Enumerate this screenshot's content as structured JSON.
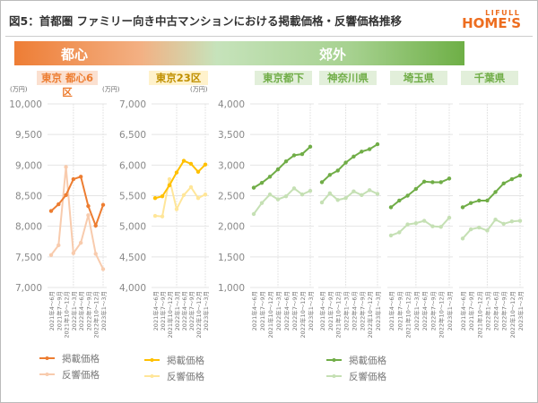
{
  "header": {
    "title": "図5：首都圏 ファミリー向き中古マンションにおける掲載価格・反響価格推移",
    "logo_top": "LIFULL",
    "logo_bottom": "HOME'S"
  },
  "band": {
    "left": "都心",
    "right": "郊外"
  },
  "unit": "(万円)",
  "colors": {
    "orange": "#ed7d31",
    "orange_light": "#f8cbad",
    "yellow": "#ffc000",
    "yellow_light": "#ffe699",
    "green": "#70ad47",
    "green_light": "#c5e0b4",
    "brand": "#ed6d1f"
  },
  "chart_data": {
    "type": "line",
    "categories": [
      "2021年4～6月",
      "2021年7～9月",
      "2021年10～12月",
      "2022年1～3月",
      "2022年4～6月",
      "2022年7～9月",
      "2022年10～12月",
      "2023年1～3月"
    ],
    "legend": [
      "掲載価格",
      "反響価格"
    ],
    "panels": [
      {
        "name": "東京 都心6区",
        "ylim": [
          7000,
          10000
        ],
        "yticks": [
          "7,000",
          "7,500",
          "8,000",
          "8,500",
          "9,000",
          "9,500",
          "10,000"
        ],
        "series": [
          {
            "name": "掲載価格",
            "values": [
              8250,
              8360,
              8510,
              8770,
              8810,
              8330,
              8010,
              8350
            ]
          },
          {
            "name": "反響価格",
            "values": [
              7530,
              7690,
              8970,
              7560,
              7730,
              8180,
              7550,
              7300
            ]
          }
        ]
      },
      {
        "name": "東京23区",
        "ylim": [
          4000,
          7000
        ],
        "yticks": [
          "4,000",
          "4,500",
          "5,000",
          "5,500",
          "6,000",
          "6,500",
          "7,000"
        ],
        "series": [
          {
            "name": "掲載価格",
            "values": [
              5460,
              5490,
              5670,
              5880,
              6070,
              6020,
              5890,
              6010
            ]
          },
          {
            "name": "反響価格",
            "values": [
              5170,
              5160,
              5770,
              5280,
              5510,
              5640,
              5460,
              5520
            ]
          }
        ]
      },
      {
        "name": "東京都下",
        "ylim": [
          1000,
          4000
        ],
        "yticks": [
          "1,000",
          "1,500",
          "2,000",
          "2,500",
          "3,000",
          "3,500",
          "4,000"
        ],
        "series": [
          {
            "name": "掲載価格",
            "values": [
              2630,
              2710,
              2810,
              2930,
              3060,
              3160,
              3180,
              3300
            ]
          },
          {
            "name": "反響価格",
            "values": [
              2200,
              2380,
              2520,
              2440,
              2490,
              2620,
              2520,
              2580
            ]
          }
        ]
      },
      {
        "name": "神奈川県",
        "ylim": [
          1000,
          4000
        ],
        "series": [
          {
            "name": "掲載価格",
            "values": [
              2720,
              2840,
              2910,
              3040,
              3140,
              3220,
              3260,
              3340
            ]
          },
          {
            "name": "反響価格",
            "values": [
              2390,
              2540,
              2430,
              2460,
              2570,
              2510,
              2590,
              2530
            ]
          }
        ]
      },
      {
        "name": "埼玉県",
        "ylim": [
          1000,
          4000
        ],
        "series": [
          {
            "name": "掲載価格",
            "values": [
              2310,
              2420,
              2500,
              2610,
              2730,
              2720,
              2720,
              2780
            ]
          },
          {
            "name": "反響価格",
            "values": [
              1850,
              1900,
              2030,
              2050,
              2090,
              2000,
              1990,
              2140
            ]
          }
        ]
      },
      {
        "name": "千葉県",
        "ylim": [
          1000,
          4000
        ],
        "series": [
          {
            "name": "掲載価格",
            "values": [
              2310,
              2380,
              2420,
              2420,
              2560,
              2700,
              2770,
              2830
            ]
          },
          {
            "name": "反響価格",
            "values": [
              1800,
              1950,
              1980,
              1930,
              2110,
              2040,
              2080,
              2090
            ]
          }
        ]
      }
    ]
  }
}
